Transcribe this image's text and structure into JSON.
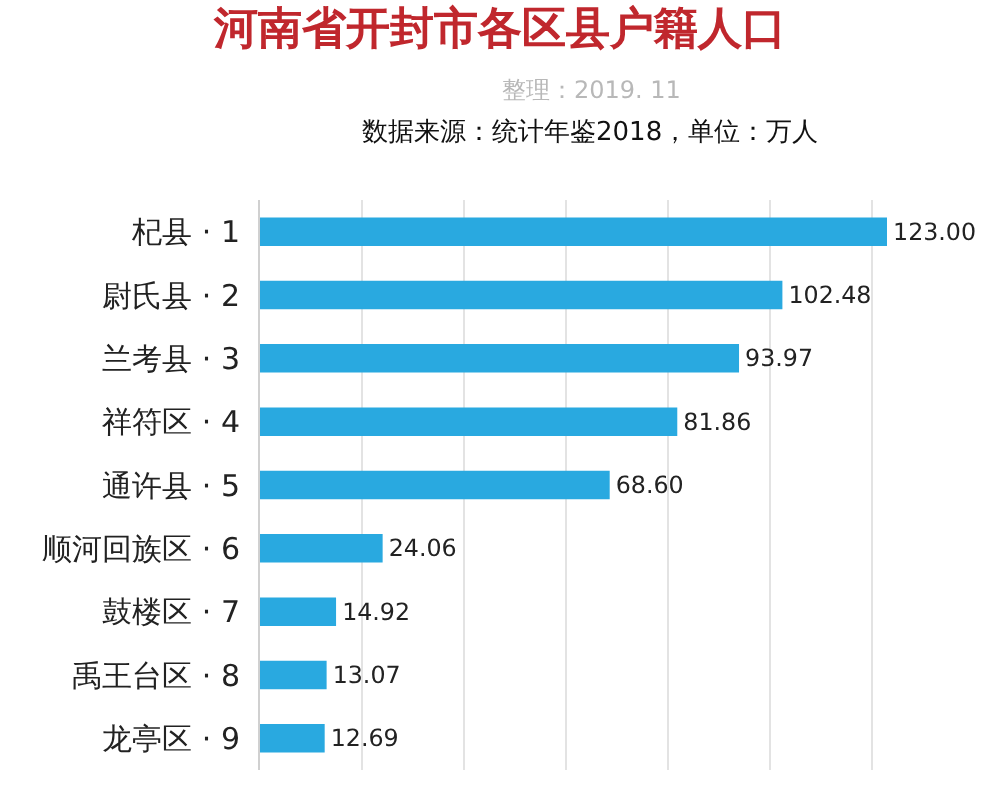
{
  "chart_data": {
    "type": "bar",
    "orientation": "horizontal",
    "title": "河南省开封市各区县户籍人口",
    "subtitle": "整理：2019. 11",
    "annotations": [
      "数据来源：统计年鉴2018，单位：万人"
    ],
    "categories": [
      "杞县 · 1",
      "尉氏县 · 2",
      "兰考县 · 3",
      "祥符区 · 4",
      "通许县 · 5",
      "顺河回族区 · 6",
      "鼓楼区 · 7",
      "禹王台区 · 8",
      "龙亭区 · 9"
    ],
    "values": [
      123.0,
      102.48,
      93.97,
      81.86,
      68.6,
      24.06,
      14.92,
      13.07,
      12.69
    ],
    "value_labels": [
      "123.00",
      "102.48",
      "93.97",
      "81.86",
      "68.60",
      "24.06",
      "14.92",
      "13.07",
      "12.69"
    ],
    "color": "#29a9e0",
    "grid": "x",
    "tick_labels": "y",
    "legend": false
  }
}
